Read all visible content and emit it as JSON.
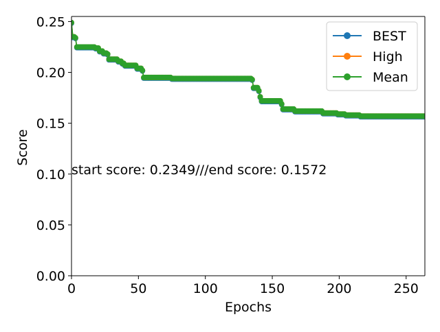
{
  "chart_data": {
    "type": "line",
    "title": "",
    "xlabel": "Epochs",
    "ylabel": "Score",
    "xlim": [
      0,
      264
    ],
    "ylim": [
      0.0,
      0.255
    ],
    "x_ticks": [
      0,
      50,
      100,
      150,
      200,
      250
    ],
    "y_ticks": [
      0.0,
      0.05,
      0.1,
      0.15,
      0.2,
      0.25
    ],
    "x_tick_labels": [
      "0",
      "50",
      "100",
      "150",
      "200",
      "250"
    ],
    "y_tick_labels": [
      "0.00",
      "0.05",
      "0.10",
      "0.15",
      "0.20",
      "0.25"
    ],
    "grid": false,
    "legend_position": "top-right",
    "annotation": "start score: 0.2349///end score: 0.1572",
    "annotation_anchor": {
      "x": 0,
      "y": 0.1
    },
    "series": [
      {
        "name": "BEST",
        "color": "#1f77b4",
        "marker": "circle"
      },
      {
        "name": "High",
        "color": "#ff7f0e",
        "marker": "circle"
      },
      {
        "name": "Mean",
        "color": "#2ca02c",
        "marker": "circle"
      }
    ],
    "curve_steps": [
      [
        0,
        0.249
      ],
      [
        1,
        0.235
      ],
      [
        3,
        0.234
      ],
      [
        4,
        0.225
      ],
      [
        18,
        0.224
      ],
      [
        21,
        0.221
      ],
      [
        24,
        0.219
      ],
      [
        27,
        0.218
      ],
      [
        28,
        0.213
      ],
      [
        35,
        0.211
      ],
      [
        38,
        0.209
      ],
      [
        40,
        0.207
      ],
      [
        47,
        0.207
      ],
      [
        49,
        0.204
      ],
      [
        53,
        0.202
      ],
      [
        54,
        0.195
      ],
      [
        75,
        0.194
      ],
      [
        135,
        0.193
      ],
      [
        136,
        0.185
      ],
      [
        140,
        0.182
      ],
      [
        141,
        0.176
      ],
      [
        142,
        0.172
      ],
      [
        157,
        0.169
      ],
      [
        158,
        0.164
      ],
      [
        167,
        0.162
      ],
      [
        188,
        0.16
      ],
      [
        199,
        0.159
      ],
      [
        205,
        0.158
      ],
      [
        216,
        0.157
      ],
      [
        264,
        0.157
      ]
    ]
  }
}
